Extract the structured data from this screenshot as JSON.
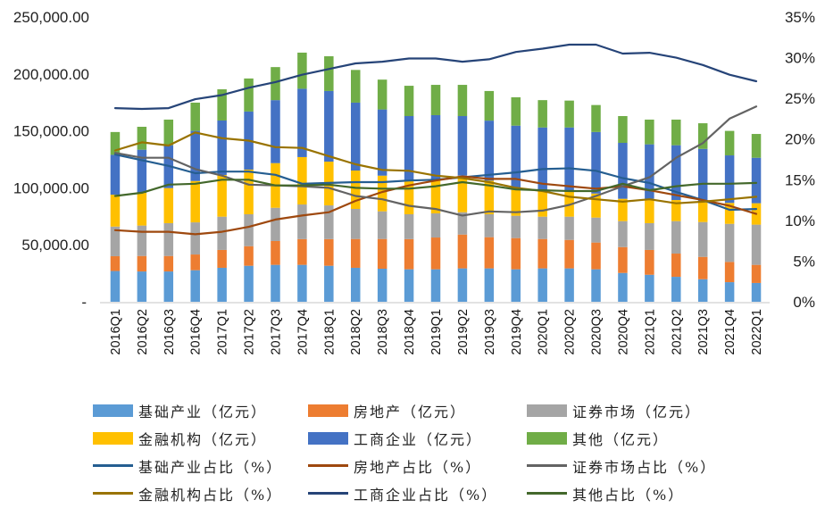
{
  "chart_data": {
    "type": "bar+line",
    "title": "",
    "categories": [
      "2016Q1",
      "2016Q2",
      "2016Q3",
      "2016Q4",
      "2017Q1",
      "2017Q2",
      "2017Q3",
      "2017Q4",
      "2018Q1",
      "2018Q2",
      "2018Q3",
      "2018Q4",
      "2019Q1",
      "2019Q2",
      "2019Q3",
      "2019Q4",
      "2020Q1",
      "2020Q2",
      "2020Q3",
      "2020Q4",
      "2021Q1",
      "2021Q2",
      "2021Q3",
      "2021Q4",
      "2022Q1"
    ],
    "left_axis": {
      "ylim": [
        0,
        250000
      ],
      "ticks": [
        0,
        50000,
        100000,
        150000,
        200000,
        250000
      ],
      "tick_labels": [
        "-",
        "50,000.00",
        "100,000.00",
        "150,000.00",
        "200,000.00",
        "250,000.00"
      ]
    },
    "right_axis": {
      "ylim": [
        0,
        35
      ],
      "ticks": [
        0,
        5,
        10,
        15,
        20,
        25,
        30,
        35
      ],
      "tick_labels": [
        "0%",
        "5%",
        "10%",
        "15%",
        "20%",
        "25%",
        "30%",
        "35%"
      ]
    },
    "bar_series": [
      {
        "name": "基础产业（亿元）",
        "color": "#5B9BD5",
        "values": [
          27000,
          26600,
          26600,
          27700,
          29800,
          31600,
          32400,
          32400,
          31600,
          29800,
          29000,
          28500,
          28500,
          29300,
          29300,
          28500,
          29300,
          29300,
          28500,
          25300,
          23700,
          21900,
          19800,
          17200,
          16500
        ]
      },
      {
        "name": "房地产（亿元）",
        "color": "#ED7D31",
        "values": [
          13000,
          13600,
          13600,
          13800,
          15700,
          17200,
          20900,
          22600,
          23400,
          25300,
          26100,
          26500,
          27900,
          29700,
          27400,
          27400,
          25800,
          25000,
          23500,
          22700,
          21800,
          20400,
          19600,
          17800,
          15900
        ]
      },
      {
        "name": "证券市场（亿元）",
        "color": "#A5A5A5",
        "values": [
          26000,
          26700,
          28800,
          28200,
          29200,
          28000,
          29200,
          30400,
          29600,
          26400,
          24300,
          21800,
          21200,
          19600,
          20100,
          19600,
          19600,
          20400,
          21900,
          22800,
          23500,
          28500,
          30600,
          33400,
          35300
        ]
      },
      {
        "name": "金融机构（亿元）",
        "color": "#FFC000",
        "values": [
          28000,
          28700,
          30800,
          36300,
          36600,
          39200,
          39200,
          41600,
          38400,
          33700,
          31300,
          29500,
          28700,
          32100,
          29500,
          22700,
          23000,
          21700,
          21100,
          19600,
          21400,
          18500,
          17200,
          18400,
          18800
        ]
      },
      {
        "name": "工商企业（亿元）",
        "color": "#4472C4",
        "values": [
          35000,
          37900,
          37600,
          44000,
          47800,
          51000,
          55300,
          60000,
          62000,
          59600,
          58100,
          56700,
          57500,
          52300,
          52700,
          56400,
          55300,
          56600,
          54000,
          49100,
          47800,
          48100,
          47000,
          41700,
          39900
        ]
      },
      {
        "name": "其他（亿元）",
        "color": "#70AD47",
        "values": [
          20000,
          20100,
          22500,
          24800,
          27400,
          29000,
          29000,
          31700,
          30500,
          28700,
          26200,
          26600,
          26600,
          27400,
          26000,
          24900,
          24000,
          23600,
          23700,
          23500,
          21700,
          22500,
          22500,
          21500,
          20900
        ]
      }
    ],
    "line_series": [
      {
        "name": "基础产业占比（%）",
        "color": "#255E91",
        "values": [
          18.1,
          17.4,
          16.7,
          15.8,
          16.0,
          16.0,
          15.6,
          14.5,
          14.6,
          14.7,
          14.7,
          14.9,
          15.0,
          15.3,
          15.6,
          15.9,
          16.3,
          16.4,
          16.1,
          15.2,
          14.6,
          13.5,
          12.5,
          11.3,
          11.4
        ]
      },
      {
        "name": "房地产占比（%）",
        "color": "#9E480E",
        "values": [
          8.8,
          8.6,
          8.6,
          8.3,
          8.6,
          9.2,
          10.1,
          10.6,
          11.0,
          12.4,
          13.5,
          14.3,
          14.9,
          15.4,
          15.1,
          15.1,
          14.5,
          14.2,
          13.9,
          14.2,
          13.7,
          13.1,
          12.5,
          11.8,
          10.8
        ]
      },
      {
        "name": "证券市场占比（%）",
        "color": "#636363",
        "values": [
          18.3,
          17.7,
          17.7,
          16.3,
          15.5,
          14.4,
          14.3,
          14.2,
          14.0,
          13.0,
          12.6,
          11.8,
          11.4,
          10.6,
          11.1,
          11.0,
          11.2,
          11.9,
          13.0,
          14.2,
          15.3,
          17.7,
          19.5,
          22.5,
          24.0
        ]
      },
      {
        "name": "金融机构占比（%）",
        "color": "#997300",
        "values": [
          18.6,
          19.6,
          19.2,
          20.8,
          20.1,
          19.8,
          19.0,
          18.9,
          17.9,
          16.9,
          16.2,
          16.1,
          15.5,
          15.2,
          14.7,
          14.0,
          13.6,
          12.9,
          12.6,
          12.3,
          12.6,
          12.1,
          12.3,
          12.6,
          12.9
        ]
      },
      {
        "name": "工商企业占比（%）",
        "color": "#264478",
        "values": [
          23.8,
          23.7,
          23.8,
          24.9,
          25.4,
          26.3,
          27.0,
          27.9,
          28.6,
          29.3,
          29.5,
          29.9,
          29.9,
          29.5,
          29.8,
          30.7,
          31.1,
          31.6,
          31.6,
          30.5,
          30.6,
          30.0,
          29.1,
          27.9,
          27.1
        ]
      },
      {
        "name": "其他占比（%）",
        "color": "#43682B",
        "values": [
          13.0,
          13.4,
          14.4,
          14.5,
          15.0,
          15.0,
          14.3,
          14.3,
          14.4,
          14.0,
          13.9,
          13.9,
          14.2,
          14.7,
          14.3,
          13.8,
          13.7,
          13.6,
          13.6,
          14.5,
          13.7,
          14.2,
          14.5,
          14.5,
          14.6
        ]
      }
    ],
    "legend_position": "bottom",
    "grid": false
  },
  "legend": {
    "rows": [
      [
        {
          "label": "基础产业（亿元）",
          "kind": "bar",
          "color": "#5B9BD5"
        },
        {
          "label": "房地产（亿元）",
          "kind": "bar",
          "color": "#ED7D31"
        },
        {
          "label": "证券市场（亿元）",
          "kind": "bar",
          "color": "#A5A5A5"
        }
      ],
      [
        {
          "label": "金融机构（亿元）",
          "kind": "bar",
          "color": "#FFC000"
        },
        {
          "label": "工商企业（亿元）",
          "kind": "bar",
          "color": "#4472C4"
        },
        {
          "label": "其他（亿元）",
          "kind": "bar",
          "color": "#70AD47"
        }
      ],
      [
        {
          "label": "基础产业占比（%）",
          "kind": "line",
          "color": "#255E91"
        },
        {
          "label": "房地产占比（%）",
          "kind": "line",
          "color": "#9E480E"
        },
        {
          "label": "证券市场占比（%）",
          "kind": "line",
          "color": "#636363"
        }
      ],
      [
        {
          "label": "金融机构占比（%）",
          "kind": "line",
          "color": "#997300"
        },
        {
          "label": "工商企业占比（%）",
          "kind": "line",
          "color": "#264478"
        },
        {
          "label": "其他占比（%）",
          "kind": "line",
          "color": "#43682B"
        }
      ]
    ]
  }
}
